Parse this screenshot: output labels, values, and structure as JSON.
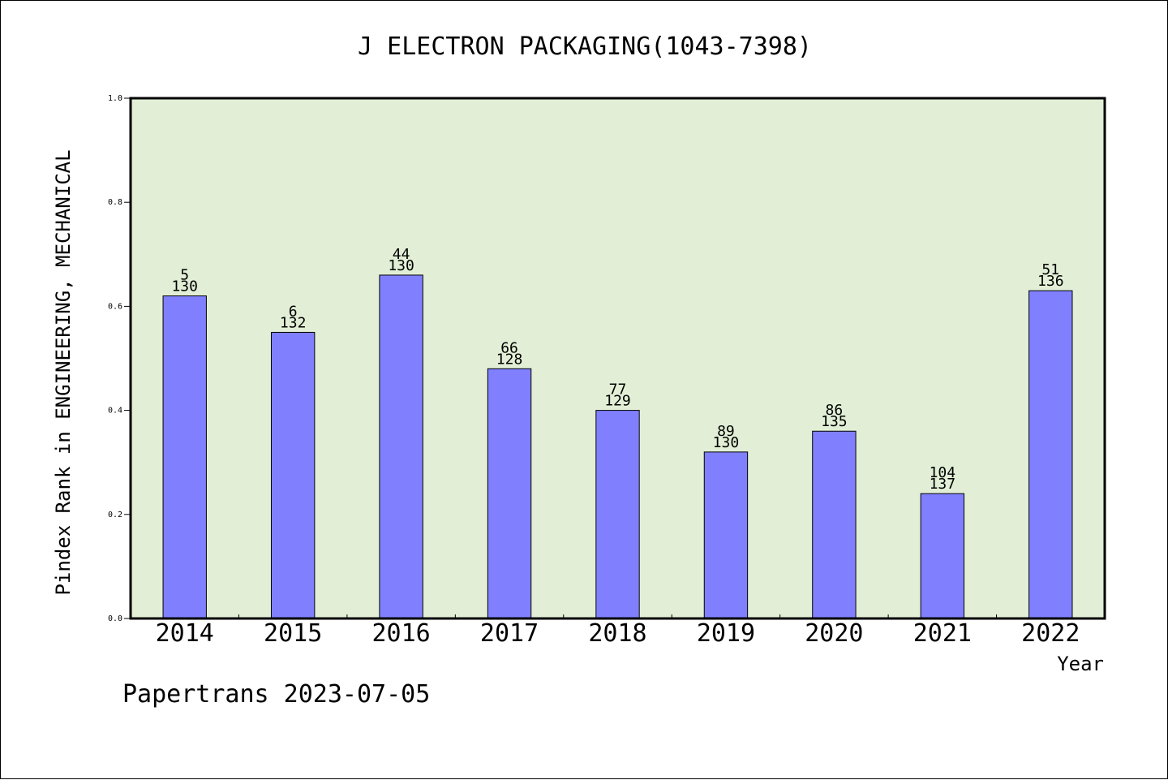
{
  "chart_data": {
    "type": "bar",
    "title": "J ELECTRON PACKAGING(1043-7398)",
    "xlabel": "Year",
    "ylabel": "Pindex Rank in ENGINEERING, MECHANICAL",
    "ylim": [
      0,
      1.0
    ],
    "yticks": [
      "0.0",
      "0.2",
      "0.4",
      "0.6",
      "0.8",
      "1.0"
    ],
    "categories": [
      "2014",
      "2015",
      "2016",
      "2017",
      "2018",
      "2019",
      "2020",
      "2021",
      "2022"
    ],
    "values": [
      0.62,
      0.55,
      0.66,
      0.48,
      0.4,
      0.32,
      0.36,
      0.24,
      0.63
    ],
    "ranks": [
      "5",
      "6",
      "44",
      "66",
      "77",
      "89",
      "86",
      "104",
      "51"
    ],
    "totals": [
      "130",
      "132",
      "130",
      "128",
      "129",
      "130",
      "135",
      "137",
      "136"
    ],
    "grid": false,
    "colors": {
      "plot_background": "#e2efd6",
      "bar_fill": "#8080ff",
      "bar_stroke": "#000000"
    }
  },
  "footer": {
    "text": "Papertrans 2023-07-05"
  }
}
